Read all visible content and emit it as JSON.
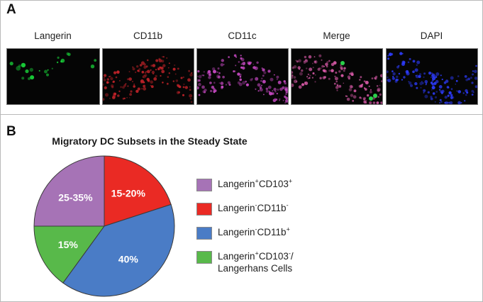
{
  "panels": {
    "a_label": "A",
    "b_label": "B"
  },
  "microscopy": [
    {
      "label": "Langerin",
      "fluor_color": "#19d63a"
    },
    {
      "label": "CD11b",
      "fluor_color": "#c8242a"
    },
    {
      "label": "CD11c",
      "fluor_color": "#cc4bc8"
    },
    {
      "label": "Merge",
      "fluor_color": "#d85aa8"
    },
    {
      "label": "DAPI",
      "fluor_color": "#2d3cff"
    }
  ],
  "chart_data": {
    "type": "pie",
    "title": "Migratory DC Subsets in the Steady State",
    "slices": [
      {
        "label": "15-20%",
        "value": 20,
        "color": "#ea2a24",
        "legend": {
          "base": "Langerin",
          "sup1": "-",
          "mid": "CD11b",
          "sup2": "-"
        }
      },
      {
        "label": "40%",
        "value": 40,
        "color": "#4a7cc6",
        "legend": {
          "base": "Langerin",
          "sup1": "-",
          "mid": "CD11b",
          "sup2": "+"
        }
      },
      {
        "label": "15%",
        "value": 15,
        "color": "#58b94a",
        "legend": {
          "base": "Langerin",
          "sup1": "+",
          "mid": "CD103",
          "sup2": "-",
          "suffix": "/",
          "line2": "Langerhans Cells"
        }
      },
      {
        "label": "25-35%",
        "value": 25,
        "color": "#a673b6",
        "legend": {
          "base": "Langerin",
          "sup1": "+",
          "mid": "CD103",
          "sup2": "+"
        }
      }
    ],
    "legend_order": [
      3,
      0,
      1,
      2
    ]
  }
}
